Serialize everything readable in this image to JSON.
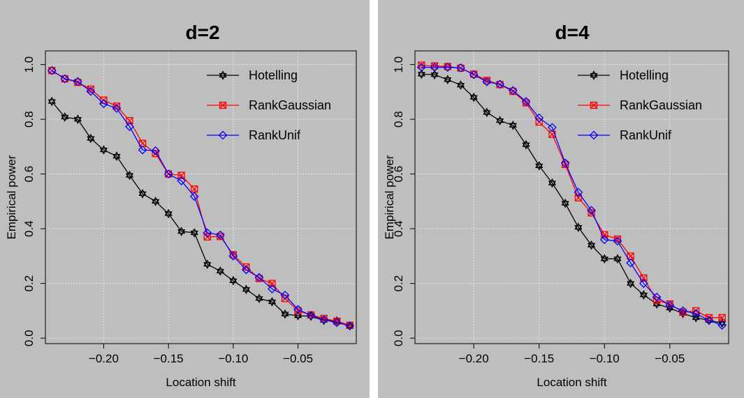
{
  "chart_data": [
    {
      "type": "line",
      "title": "d=2",
      "xlabel": "Location shift",
      "ylabel": "Empirical power",
      "xlim": [
        -0.245,
        -0.005
      ],
      "ylim": [
        -0.02,
        1.05
      ],
      "xticks": [
        -0.2,
        -0.15,
        -0.1,
        -0.05
      ],
      "xtick_labels": [
        "−0.20",
        "−0.15",
        "−0.10",
        "−0.05"
      ],
      "yticks": [
        0.0,
        0.2,
        0.4,
        0.6,
        0.8,
        1.0
      ],
      "ytick_labels": [
        "0.0",
        "0.2",
        "0.4",
        "0.6",
        "0.8",
        "1.0"
      ],
      "grid": true,
      "legend_position": "top-right",
      "x": [
        -0.24,
        -0.23,
        -0.22,
        -0.21,
        -0.2,
        -0.19,
        -0.18,
        -0.17,
        -0.16,
        -0.15,
        -0.14,
        -0.13,
        -0.12,
        -0.11,
        -0.1,
        -0.09,
        -0.08,
        -0.07,
        -0.06,
        -0.05,
        -0.04,
        -0.03,
        -0.02,
        -0.01
      ],
      "series": [
        {
          "name": "Hotelling",
          "color": "#000000",
          "marker": "star",
          "values": [
            0.865,
            0.808,
            0.8,
            0.73,
            0.688,
            0.665,
            0.595,
            0.528,
            0.5,
            0.455,
            0.39,
            0.385,
            0.27,
            0.245,
            0.21,
            0.178,
            0.145,
            0.133,
            0.088,
            0.082,
            0.08,
            0.065,
            0.063,
            0.045
          ]
        },
        {
          "name": "RankGaussian",
          "color": "#ff0000",
          "marker": "boxed-x",
          "values": [
            0.978,
            0.948,
            0.935,
            0.91,
            0.87,
            0.848,
            0.795,
            0.712,
            0.675,
            0.6,
            0.595,
            0.545,
            0.37,
            0.372,
            0.305,
            0.26,
            0.218,
            0.2,
            0.145,
            0.1,
            0.085,
            0.072,
            0.062,
            0.047
          ]
        },
        {
          "name": "RankUnif",
          "color": "#0000ff",
          "marker": "diamond",
          "values": [
            0.978,
            0.948,
            0.938,
            0.902,
            0.857,
            0.84,
            0.773,
            0.688,
            0.685,
            0.6,
            0.575,
            0.518,
            0.385,
            0.377,
            0.3,
            0.25,
            0.222,
            0.18,
            0.157,
            0.105,
            0.083,
            0.067,
            0.057,
            0.045
          ]
        }
      ]
    },
    {
      "type": "line",
      "title": "d=4",
      "xlabel": "Location shift",
      "ylabel": "Empirical power",
      "xlim": [
        -0.245,
        -0.005
      ],
      "ylim": [
        -0.02,
        1.05
      ],
      "xticks": [
        -0.2,
        -0.15,
        -0.1,
        -0.05
      ],
      "xtick_labels": [
        "−0.20",
        "−0.15",
        "−0.10",
        "−0.05"
      ],
      "yticks": [
        0.0,
        0.2,
        0.4,
        0.6,
        0.8,
        1.0
      ],
      "ytick_labels": [
        "0.0",
        "0.2",
        "0.4",
        "0.6",
        "0.8",
        "1.0"
      ],
      "grid": true,
      "legend_position": "top-right",
      "x": [
        -0.24,
        -0.23,
        -0.22,
        -0.21,
        -0.2,
        -0.19,
        -0.18,
        -0.17,
        -0.16,
        -0.15,
        -0.14,
        -0.13,
        -0.12,
        -0.11,
        -0.1,
        -0.09,
        -0.08,
        -0.07,
        -0.06,
        -0.05,
        -0.04,
        -0.03,
        -0.02,
        -0.01
      ],
      "series": [
        {
          "name": "Hotelling",
          "color": "#000000",
          "marker": "star",
          "values": [
            0.965,
            0.963,
            0.945,
            0.925,
            0.88,
            0.825,
            0.795,
            0.778,
            0.707,
            0.63,
            0.567,
            0.493,
            0.405,
            0.34,
            0.29,
            0.29,
            0.2,
            0.158,
            0.125,
            0.11,
            0.09,
            0.075,
            0.065,
            0.055
          ]
        },
        {
          "name": "RankGaussian",
          "color": "#ff0000",
          "marker": "boxed-x",
          "values": [
            0.998,
            0.995,
            0.993,
            0.987,
            0.965,
            0.942,
            0.927,
            0.902,
            0.86,
            0.79,
            0.745,
            0.635,
            0.513,
            0.458,
            0.378,
            0.362,
            0.3,
            0.22,
            0.138,
            0.125,
            0.095,
            0.1,
            0.075,
            0.075
          ]
        },
        {
          "name": "RankUnif",
          "color": "#0000ff",
          "marker": "diamond",
          "values": [
            0.99,
            0.99,
            0.99,
            0.988,
            0.963,
            0.937,
            0.928,
            0.905,
            0.865,
            0.805,
            0.77,
            0.64,
            0.533,
            0.467,
            0.36,
            0.355,
            0.275,
            0.2,
            0.15,
            0.12,
            0.1,
            0.09,
            0.065,
            0.047
          ]
        }
      ]
    }
  ]
}
